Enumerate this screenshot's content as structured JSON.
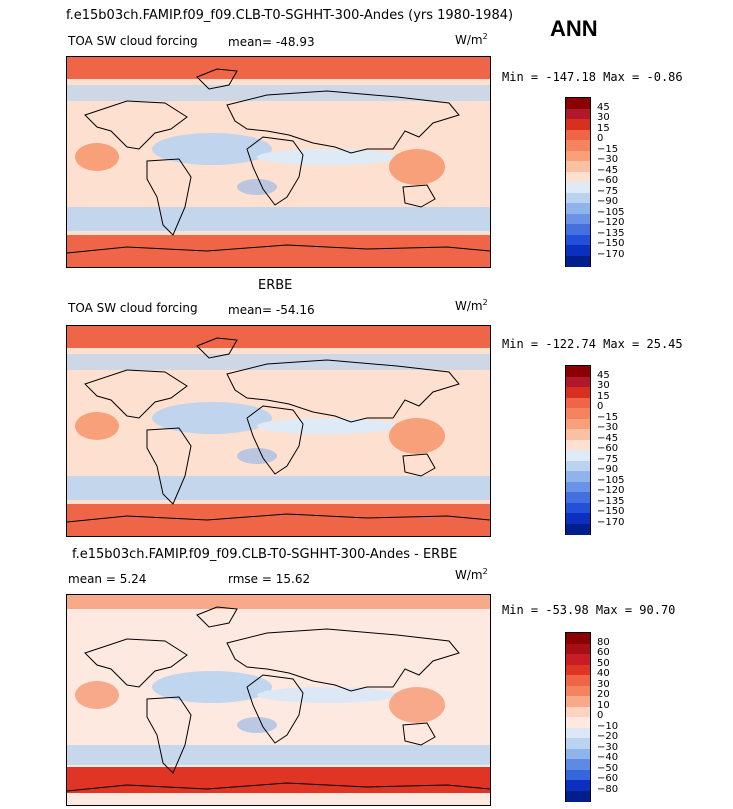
{
  "top_title": "f.e15b03ch.FAMIP.f09_f09.CLB-T0-SGHHT-300-Andes (yrs 1980-1984)",
  "season": "ANN",
  "panels": [
    {
      "id": "model",
      "heading": "",
      "field_label": "TOA SW cloud forcing",
      "stat_text": "mean=  -48.93",
      "units": "W/m",
      "units_sup": "2",
      "minmax": "Min = -147.18  Max =   -0.86",
      "colorbar": {
        "labels": [
          "45",
          "30",
          "15",
          "0",
          "−15",
          "−30",
          "−45",
          "−60",
          "−75",
          "−90",
          "−105",
          "−120",
          "−135",
          "−150",
          "−170"
        ],
        "colors": [
          "#8b0000",
          "#b2182b",
          "#d7301f",
          "#ef6548",
          "#f4845f",
          "#f7a07a",
          "#fac0a2",
          "#fde0cf",
          "#deebf7",
          "#b9d3f0",
          "#8fb3ea",
          "#6a92e6",
          "#4571e0",
          "#2350d8",
          "#0c2fc0",
          "#001e8c"
        ]
      }
    },
    {
      "id": "obs",
      "heading": "ERBE",
      "field_label": "TOA SW cloud forcing",
      "stat_text": "mean=  -54.16",
      "units": "W/m",
      "units_sup": "2",
      "minmax": "Min = -122.74  Max =   25.45",
      "colorbar": {
        "labels": [
          "45",
          "30",
          "15",
          "0",
          "−15",
          "−30",
          "−45",
          "−60",
          "−75",
          "−90",
          "−105",
          "−120",
          "−135",
          "−150",
          "−170"
        ],
        "colors": [
          "#8b0000",
          "#b2182b",
          "#d7301f",
          "#ef6548",
          "#f4845f",
          "#f7a07a",
          "#fac0a2",
          "#fde0cf",
          "#deebf7",
          "#b9d3f0",
          "#8fb3ea",
          "#6a92e6",
          "#4571e0",
          "#2350d8",
          "#0c2fc0",
          "#001e8c"
        ]
      }
    },
    {
      "id": "diff",
      "heading": "f.e15b03ch.FAMIP.f09_f09.CLB-T0-SGHHT-300-Andes - ERBE",
      "field_label": "mean =    5.24",
      "stat_text": "rmse =   15.62",
      "units": "W/m",
      "units_sup": "2",
      "minmax": "Min = -53.98  Max =   90.70",
      "colorbar": {
        "labels": [
          "80",
          "60",
          "50",
          "40",
          "30",
          "20",
          "10",
          "0",
          "−10",
          "−20",
          "−30",
          "−40",
          "−50",
          "−60",
          "−80"
        ],
        "colors": [
          "#8b0000",
          "#a50f15",
          "#c81d25",
          "#e03524",
          "#ef6548",
          "#f4845f",
          "#f7a98a",
          "#fbd3c0",
          "#fde9df",
          "#dce8f6",
          "#b9d3f0",
          "#8fb3ea",
          "#5f8ae4",
          "#3566dc",
          "#0c2fc0",
          "#001e8c"
        ]
      }
    }
  ],
  "chart_data": [
    {
      "type": "heatmap",
      "title": "TOA SW cloud forcing",
      "subtitle": "f.e15b03ch.FAMIP.f09_f09.CLB-T0-SGHHT-300-Andes (yrs 1980-1984) — ANN",
      "units": "W/m2",
      "mean": -48.93,
      "min": -147.18,
      "max": -0.86,
      "contour_levels": [
        -170,
        -150,
        -135,
        -120,
        -105,
        -90,
        -75,
        -60,
        -45,
        -30,
        -15,
        0,
        15,
        30,
        45
      ]
    },
    {
      "type": "heatmap",
      "title": "ERBE TOA SW cloud forcing",
      "units": "W/m2",
      "mean": -54.16,
      "min": -122.74,
      "max": 25.45,
      "contour_levels": [
        -170,
        -150,
        -135,
        -120,
        -105,
        -90,
        -75,
        -60,
        -45,
        -30,
        -15,
        0,
        15,
        30,
        45
      ]
    },
    {
      "type": "heatmap",
      "title": "f.e15b03ch.FAMIP.f09_f09.CLB-T0-SGHHT-300-Andes - ERBE",
      "units": "W/m2",
      "mean": 5.24,
      "rmse": 15.62,
      "min": -53.98,
      "max": 90.7,
      "contour_levels": [
        -80,
        -60,
        -50,
        -40,
        -30,
        -20,
        -10,
        0,
        10,
        20,
        30,
        40,
        50,
        60,
        80
      ]
    }
  ]
}
